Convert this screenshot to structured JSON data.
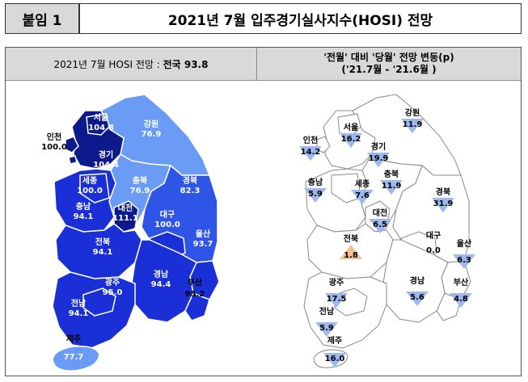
{
  "header": {
    "tag": "붙임 1",
    "title": "2021년 7월 입주경기실사지수(HOSI) 전망"
  },
  "left_panel": {
    "title_prefix": "2021년 7월 HOSI 전망 : ",
    "title_bold": "전국 93.8"
  },
  "right_panel": {
    "title_line1": "'전월' 대비 '당월' 전망 변동(p)",
    "title_line2": "('21.7월 - '21.6월 )"
  },
  "left_map": [
    {
      "name": "서울",
      "value": "104.8"
    },
    {
      "name": "인천",
      "value": "100.0"
    },
    {
      "name": "경기",
      "value": "104.4"
    },
    {
      "name": "강원",
      "value": "76.9"
    },
    {
      "name": "세종",
      "value": "100.0"
    },
    {
      "name": "충북",
      "value": "76.9"
    },
    {
      "name": "대전",
      "value": "111.1"
    },
    {
      "name": "충남",
      "value": "94.1"
    },
    {
      "name": "경북",
      "value": "82.3"
    },
    {
      "name": "대구",
      "value": "100.0"
    },
    {
      "name": "울산",
      "value": "93.7"
    },
    {
      "name": "전북",
      "value": "94.1"
    },
    {
      "name": "광주",
      "value": "95.0"
    },
    {
      "name": "경남",
      "value": "94.4"
    },
    {
      "name": "부산",
      "value": "95.2"
    },
    {
      "name": "전남",
      "value": "94.1"
    },
    {
      "name": "제주",
      "value": "77.7"
    }
  ],
  "right_map": [
    {
      "name": "인천",
      "value": "14.2",
      "dir": "down"
    },
    {
      "name": "서울",
      "value": "16.2",
      "dir": "down"
    },
    {
      "name": "강원",
      "value": "11.9",
      "dir": "down"
    },
    {
      "name": "경기",
      "value": "19.9",
      "dir": "down"
    },
    {
      "name": "충남",
      "value": "5.9",
      "dir": "down"
    },
    {
      "name": "세종",
      "value": "7.6",
      "dir": "down"
    },
    {
      "name": "충북",
      "value": "11.9",
      "dir": "down"
    },
    {
      "name": "대전",
      "value": "6.5",
      "dir": "down"
    },
    {
      "name": "경북",
      "value": "31.9",
      "dir": "down"
    },
    {
      "name": "전북",
      "value": "1.8",
      "dir": "up"
    },
    {
      "name": "대구",
      "value": "0.0",
      "dir": "none"
    },
    {
      "name": "울산",
      "value": "6.3",
      "dir": "down"
    },
    {
      "name": "광주",
      "value": "17.5",
      "dir": "down"
    },
    {
      "name": "경남",
      "value": "5.6",
      "dir": "down"
    },
    {
      "name": "부산",
      "value": "4.8",
      "dir": "down"
    },
    {
      "name": "전남",
      "value": "5.9",
      "dir": "down"
    },
    {
      "name": "제주",
      "value": "16.0",
      "dir": "down"
    }
  ],
  "colors": {
    "over100": "#0c1a8c",
    "mid90": "#1a2fd6",
    "mid80": "#2f55e6",
    "low": "#6b9cf5",
    "tri_down": "#9db8ef",
    "tri_up": "#f7bf8e"
  }
}
